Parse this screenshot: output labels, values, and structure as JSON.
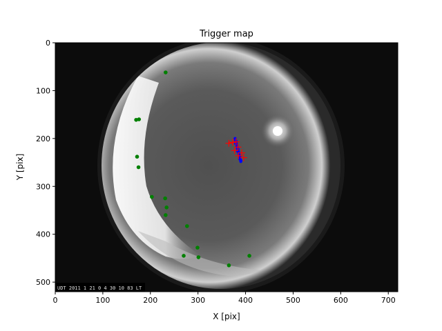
{
  "chart_data": {
    "type": "scatter",
    "title": "Trigger map",
    "xlabel": "X [pix]",
    "ylabel": "Y [pix]",
    "xlim": [
      0,
      720
    ],
    "ylim": [
      0,
      520
    ],
    "y_inverted": true,
    "x_ticks": [
      0,
      100,
      200,
      300,
      400,
      500,
      600,
      700
    ],
    "y_ticks": [
      0,
      100,
      200,
      300,
      400,
      500
    ],
    "background": "all-sky camera image (grayscale fisheye)",
    "timestamp_overlay": "UDT 2011 1 21 0 4 30 10 83 LT",
    "series": [
      {
        "marker": "circle",
        "color": "#008000",
        "points": [
          [
            232,
            62
          ],
          [
            170,
            161
          ],
          [
            176,
            160
          ],
          [
            172,
            238
          ],
          [
            175,
            260
          ],
          [
            203,
            322
          ],
          [
            231,
            325
          ],
          [
            234,
            344
          ],
          [
            232,
            360
          ],
          [
            277,
            383
          ],
          [
            299,
            428
          ],
          [
            301,
            448
          ],
          [
            270,
            445
          ],
          [
            365,
            465
          ],
          [
            408,
            445
          ]
        ]
      },
      {
        "marker": "circle",
        "color": "#0000ff",
        "points": [
          [
            378,
            200
          ],
          [
            379,
            204
          ],
          [
            380,
            208
          ],
          [
            381,
            212
          ],
          [
            382,
            216
          ],
          [
            383,
            220
          ],
          [
            384,
            224
          ],
          [
            385,
            228
          ],
          [
            386,
            232
          ],
          [
            387,
            236
          ],
          [
            388,
            240
          ],
          [
            389,
            244
          ],
          [
            390,
            248
          ],
          [
            380,
            206
          ],
          [
            382,
            214
          ],
          [
            384,
            222
          ],
          [
            386,
            230
          ],
          [
            388,
            238
          ],
          [
            390,
            246
          ],
          [
            379,
            210
          ],
          [
            383,
            226
          ],
          [
            387,
            242
          ]
        ]
      },
      {
        "marker": "plus",
        "color": "#ff0000",
        "points": [
          [
            365,
            210
          ],
          [
            373,
            208
          ],
          [
            380,
            207
          ],
          [
            384,
            218
          ],
          [
            377,
            225
          ],
          [
            392,
            230
          ],
          [
            396,
            240
          ],
          [
            385,
            236
          ]
        ]
      }
    ]
  }
}
